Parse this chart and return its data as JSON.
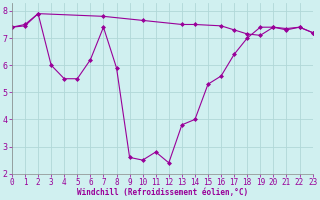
{
  "line1_x": [
    0,
    1,
    2,
    3,
    4,
    5,
    6,
    7,
    8,
    9,
    10,
    11,
    12,
    13,
    14,
    15,
    16,
    17,
    18,
    19,
    20,
    21,
    22,
    23
  ],
  "line1_y": [
    7.4,
    7.5,
    7.9,
    6.0,
    5.5,
    5.5,
    6.2,
    7.4,
    5.9,
    2.6,
    2.5,
    2.8,
    2.4,
    3.8,
    4.0,
    5.3,
    5.6,
    6.4,
    7.0,
    7.4,
    7.4,
    7.3,
    7.4,
    7.2
  ],
  "line2_x": [
    0,
    1,
    2,
    7,
    10,
    13,
    14,
    16,
    17,
    18,
    19,
    20,
    21,
    22,
    23
  ],
  "line2_y": [
    7.4,
    7.45,
    7.9,
    7.8,
    7.65,
    7.5,
    7.5,
    7.45,
    7.3,
    7.15,
    7.1,
    7.4,
    7.35,
    7.4,
    7.2
  ],
  "line_color": "#990099",
  "bg_color": "#d0f0f0",
  "grid_color": "#b0d8d8",
  "xlabel": "Windchill (Refroidissement éolien,°C)",
  "xlim": [
    0,
    23
  ],
  "ylim": [
    2.0,
    8.3
  ],
  "yticks": [
    2,
    3,
    4,
    5,
    6,
    7,
    8
  ],
  "xticks": [
    0,
    1,
    2,
    3,
    4,
    5,
    6,
    7,
    8,
    9,
    10,
    11,
    12,
    13,
    14,
    15,
    16,
    17,
    18,
    19,
    20,
    21,
    22,
    23
  ],
  "marker": "D",
  "markersize": 2.0,
  "linewidth": 0.8,
  "tick_fontsize": 5.5,
  "xlabel_fontsize": 5.5
}
